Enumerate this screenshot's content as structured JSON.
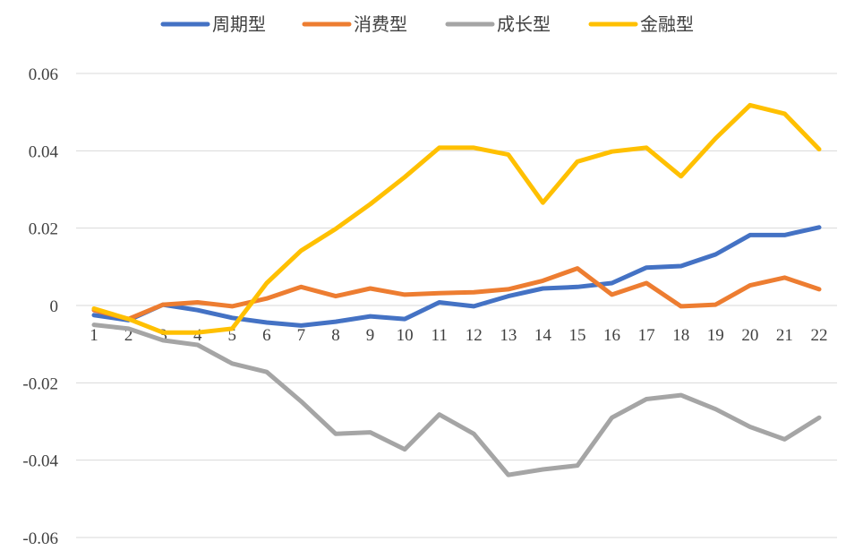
{
  "chart_data": {
    "type": "line",
    "title": "",
    "xlabel": "",
    "ylabel": "",
    "x": [
      1,
      2,
      3,
      4,
      5,
      6,
      7,
      8,
      9,
      10,
      11,
      12,
      13,
      14,
      15,
      16,
      17,
      18,
      19,
      20,
      21,
      22
    ],
    "ylim": [
      -0.06,
      0.06
    ],
    "yticks": [
      "0.06",
      "0.04",
      "0.02",
      "0",
      "-0.02",
      "-0.04",
      "-0.06"
    ],
    "ytick_values": [
      0.06,
      0.04,
      0.02,
      0,
      -0.02,
      -0.04,
      -0.06
    ],
    "grid": "horizontal",
    "legend_position": "top-center",
    "series": [
      {
        "name": "周期型",
        "color": "#4472C4",
        "values": [
          -0.0025,
          -0.0038,
          0.0002,
          -0.0012,
          -0.0032,
          -0.0044,
          -0.0052,
          -0.0042,
          -0.0028,
          -0.0035,
          0.0008,
          -0.0002,
          0.0024,
          0.0044,
          0.0048,
          0.0058,
          0.0098,
          0.0102,
          0.0132,
          0.0182,
          0.0182,
          0.0202
        ]
      },
      {
        "name": "消费型",
        "color": "#ED7D31",
        "values": [
          -0.0012,
          -0.0035,
          0.0002,
          0.0008,
          -0.0002,
          0.0018,
          0.0048,
          0.0024,
          0.0044,
          0.0028,
          0.0032,
          0.0034,
          0.0042,
          0.0064,
          0.0096,
          0.0028,
          0.0058,
          -0.0002,
          0.0002,
          0.0052,
          0.0072,
          0.0042
        ]
      },
      {
        "name": "成长型",
        "color": "#A5A5A5",
        "values": [
          -0.005,
          -0.006,
          -0.009,
          -0.0102,
          -0.015,
          -0.0172,
          -0.0248,
          -0.0332,
          -0.0328,
          -0.0372,
          -0.0282,
          -0.0332,
          -0.0438,
          -0.0424,
          -0.0414,
          -0.029,
          -0.0242,
          -0.0232,
          -0.0268,
          -0.0314,
          -0.0346,
          -0.029
        ]
      },
      {
        "name": "金融型",
        "color": "#FFC000",
        "values": [
          -0.0008,
          -0.0035,
          -0.007,
          -0.007,
          -0.006,
          0.0058,
          0.0142,
          0.0198,
          0.0262,
          0.0332,
          0.0408,
          0.0408,
          0.039,
          0.0266,
          0.0372,
          0.0398,
          0.0408,
          0.0334,
          0.0432,
          0.0518,
          0.0496,
          0.0404
        ]
      }
    ]
  }
}
